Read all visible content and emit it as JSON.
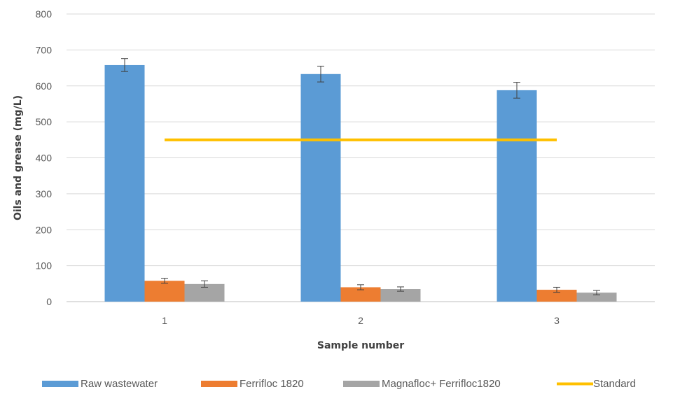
{
  "chart_data": {
    "type": "bar",
    "categories": [
      "1",
      "2",
      "3"
    ],
    "series": [
      {
        "name": "Raw wastewater",
        "values": [
          658,
          633,
          588
        ],
        "errors": [
          18,
          22,
          22
        ],
        "color": "#5b9bd5"
      },
      {
        "name": "Ferrifloc 1820",
        "values": [
          58,
          40,
          33
        ],
        "errors": [
          7,
          7,
          7
        ],
        "color": "#ed7d31"
      },
      {
        "name": "Magnafloc+ Ferrifloc1820",
        "values": [
          49,
          35,
          25
        ],
        "errors": [
          9,
          6,
          6
        ],
        "color": "#a5a5a5"
      }
    ],
    "lines": [
      {
        "name": "Standard",
        "value": 450,
        "color": "#ffc000"
      }
    ],
    "xlabel": "Sample number",
    "ylabel": "Oils and grease (mg/L)",
    "ylim": [
      0,
      800
    ],
    "yticks": [
      0,
      100,
      200,
      300,
      400,
      500,
      600,
      700,
      800
    ],
    "grid": true,
    "legend_position": "bottom"
  }
}
